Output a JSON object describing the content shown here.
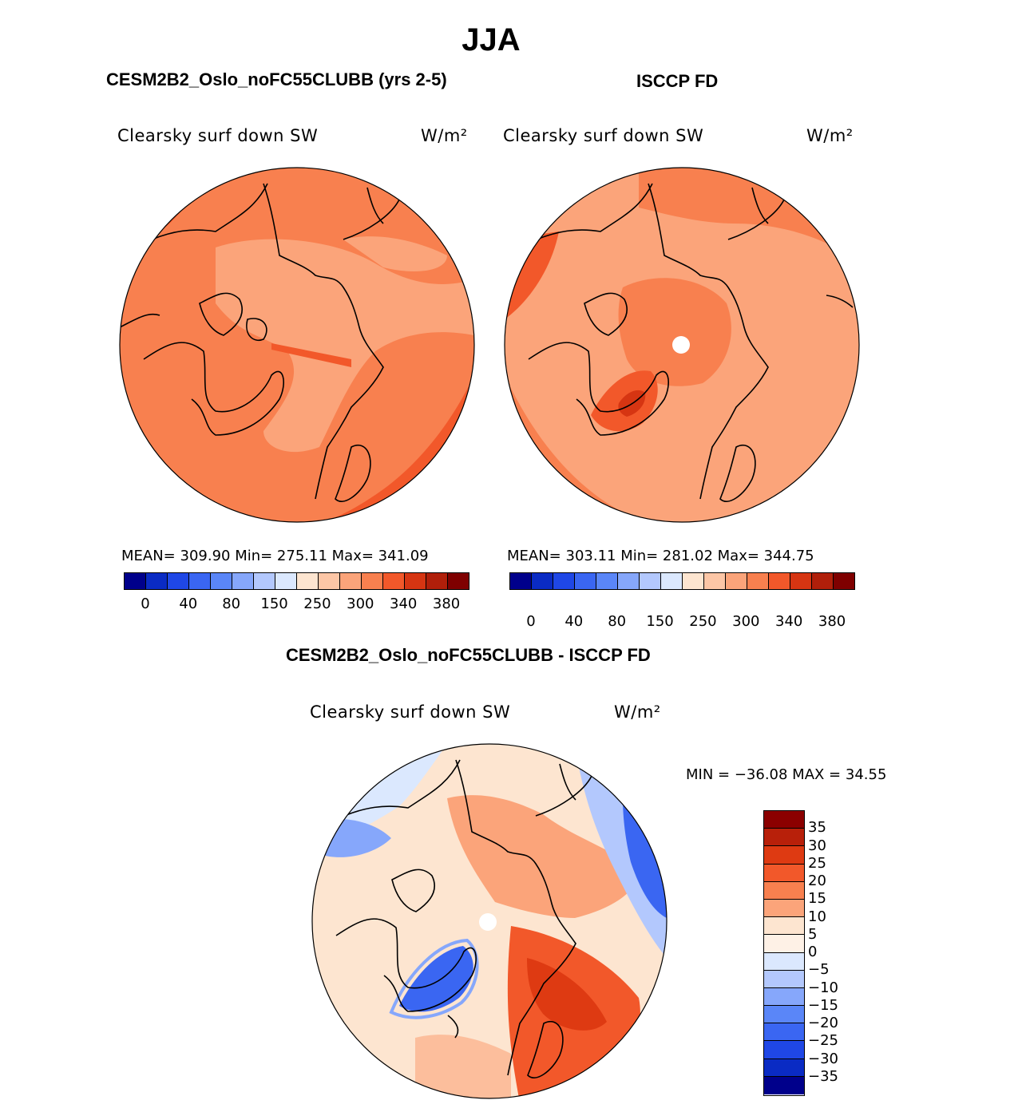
{
  "page": {
    "season_title": "JJA",
    "model_title": "CESM2B2_Oslo_noFC55CLUBB (yrs 2-5)",
    "obs_title": "ISCCP FD",
    "diff_title": "CESM2B2_Oslo_noFC55CLUBB - ISCCP FD"
  },
  "chart_data": [
    {
      "type": "heatmap",
      "projection": "north-polar-stereographic",
      "title": "Clearsky surf down SW",
      "units": "W/m²",
      "stats_text": "MEAN= 309.90   Min= 275.11   Max= 341.09",
      "mean": 309.9,
      "min": 275.11,
      "max": 341.09,
      "colorbar": {
        "levels": [
          "0",
          "40",
          "80",
          "150",
          "250",
          "300",
          "340",
          "380"
        ],
        "colors": [
          "#00008b",
          "#0a2bc4",
          "#1f47e6",
          "#3a66f2",
          "#5a86f8",
          "#86a7fb",
          "#b3c8fd",
          "#dbe8fe",
          "#fde5d0",
          "#fcc6a6",
          "#fba47a",
          "#f8804f",
          "#f2582a",
          "#d63512",
          "#b01f0a",
          "#7f0000"
        ]
      }
    },
    {
      "type": "heatmap",
      "projection": "north-polar-stereographic",
      "title": "Clearsky surf down SW",
      "units": "W/m²",
      "stats_text": "MEAN= 303.11   Min= 281.02   Max= 344.75",
      "mean": 303.11,
      "min": 281.02,
      "max": 344.75,
      "colorbar": {
        "levels": [
          "0",
          "40",
          "80",
          "150",
          "250",
          "300",
          "340",
          "380"
        ],
        "colors": [
          "#00008b",
          "#0a2bc4",
          "#1f47e6",
          "#3a66f2",
          "#5a86f8",
          "#86a7fb",
          "#b3c8fd",
          "#dbe8fe",
          "#fde5d0",
          "#fcc6a6",
          "#fba47a",
          "#f8804f",
          "#f2582a",
          "#d63512",
          "#b01f0a",
          "#7f0000"
        ]
      }
    },
    {
      "type": "heatmap",
      "projection": "north-polar-stereographic",
      "title": "Clearsky surf down SW",
      "units": "W/m²",
      "minmax_text": "MIN = −36.08 MAX =  34.55",
      "min": -36.08,
      "max": 34.55,
      "colorbar": {
        "levels": [
          "35",
          "30",
          "25",
          "20",
          "15",
          "10",
          "5",
          "0",
          "−5",
          "−10",
          "−15",
          "−20",
          "−25",
          "−30",
          "−35"
        ],
        "colors": [
          "#8b0000",
          "#b8200a",
          "#de3a12",
          "#f2582a",
          "#f8804f",
          "#fba47a",
          "#fde5d0",
          "#fef1e6",
          "#dbe8fe",
          "#b3c8fd",
          "#86a7fb",
          "#5a86f8",
          "#3a66f2",
          "#1f47e6",
          "#0a2bc4",
          "#00008b"
        ]
      }
    }
  ]
}
